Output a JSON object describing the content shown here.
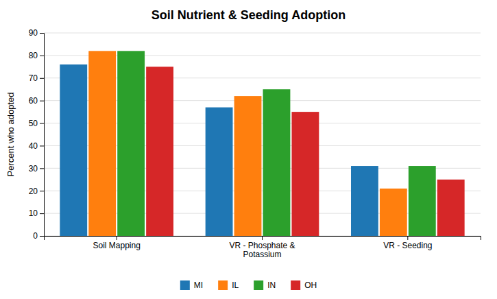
{
  "chart_data": {
    "type": "bar",
    "title": "Soil Nutrient & Seeding Adoption",
    "ylabel": "Percent who adopted",
    "categories": [
      "Soil Mapping",
      "VR - Phosphate &\nPotassium",
      "VR - Seeding"
    ],
    "series": [
      {
        "name": "MI",
        "values": [
          76,
          57,
          31
        ]
      },
      {
        "name": "IL",
        "values": [
          82,
          62,
          21
        ]
      },
      {
        "name": "IN",
        "values": [
          82,
          65,
          31
        ]
      },
      {
        "name": "OH",
        "values": [
          75,
          55,
          25
        ]
      }
    ],
    "ylim": [
      0,
      90
    ],
    "yticks": [
      0,
      10,
      20,
      30,
      40,
      50,
      60,
      70,
      80,
      90
    ],
    "grid": true,
    "legend": "bottom"
  }
}
